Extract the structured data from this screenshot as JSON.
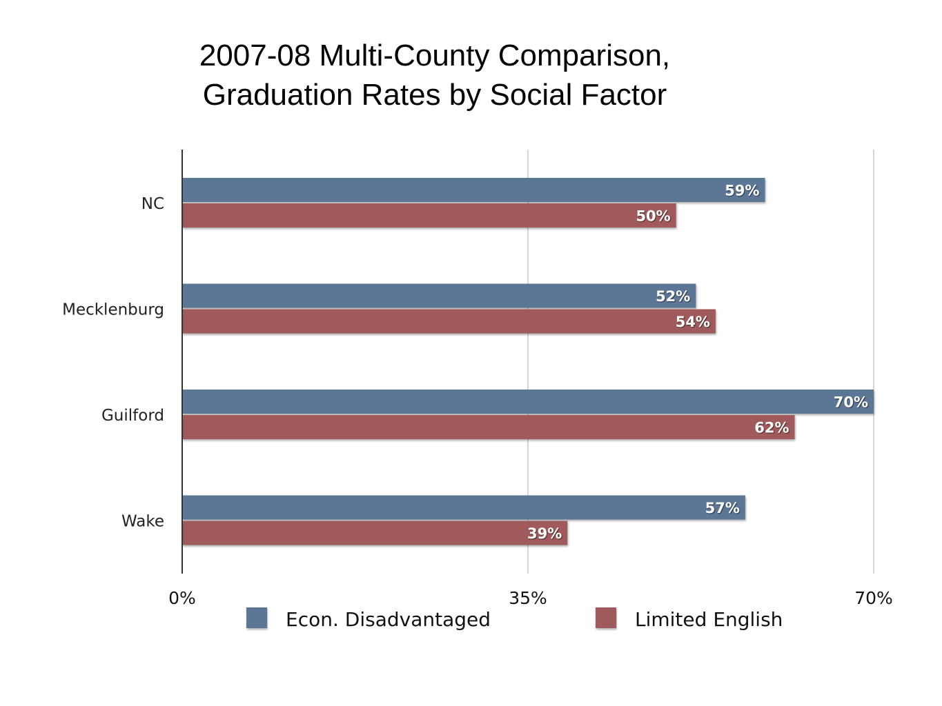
{
  "chart_data": {
    "type": "bar",
    "orientation": "horizontal",
    "title": "2007-08 Multi-County Comparison,\nGraduation Rates by Social Factor",
    "title_lines": [
      "2007-08 Multi-County Comparison,",
      "Graduation Rates by Social Factor"
    ],
    "categories": [
      "NC",
      "Mecklenburg",
      "Guilford",
      "Wake"
    ],
    "series": [
      {
        "name": "Econ. Disadvantaged",
        "values": [
          59,
          52,
          70,
          57
        ],
        "labels": [
          "59%",
          "52%",
          "70%",
          "57%"
        ],
        "color": "#5b7696"
      },
      {
        "name": "Limited English",
        "values": [
          50,
          54,
          62,
          39
        ],
        "labels": [
          "50%",
          "54%",
          "62%",
          "39%"
        ],
        "color": "#a05a5c"
      }
    ],
    "xlabel": "",
    "ylabel": "",
    "xlim": [
      0,
      70
    ],
    "x_ticks": [
      0,
      35,
      70
    ],
    "x_tick_labels": [
      "0%",
      "35%",
      "70%"
    ],
    "grid": true,
    "legend_position": "bottom"
  }
}
